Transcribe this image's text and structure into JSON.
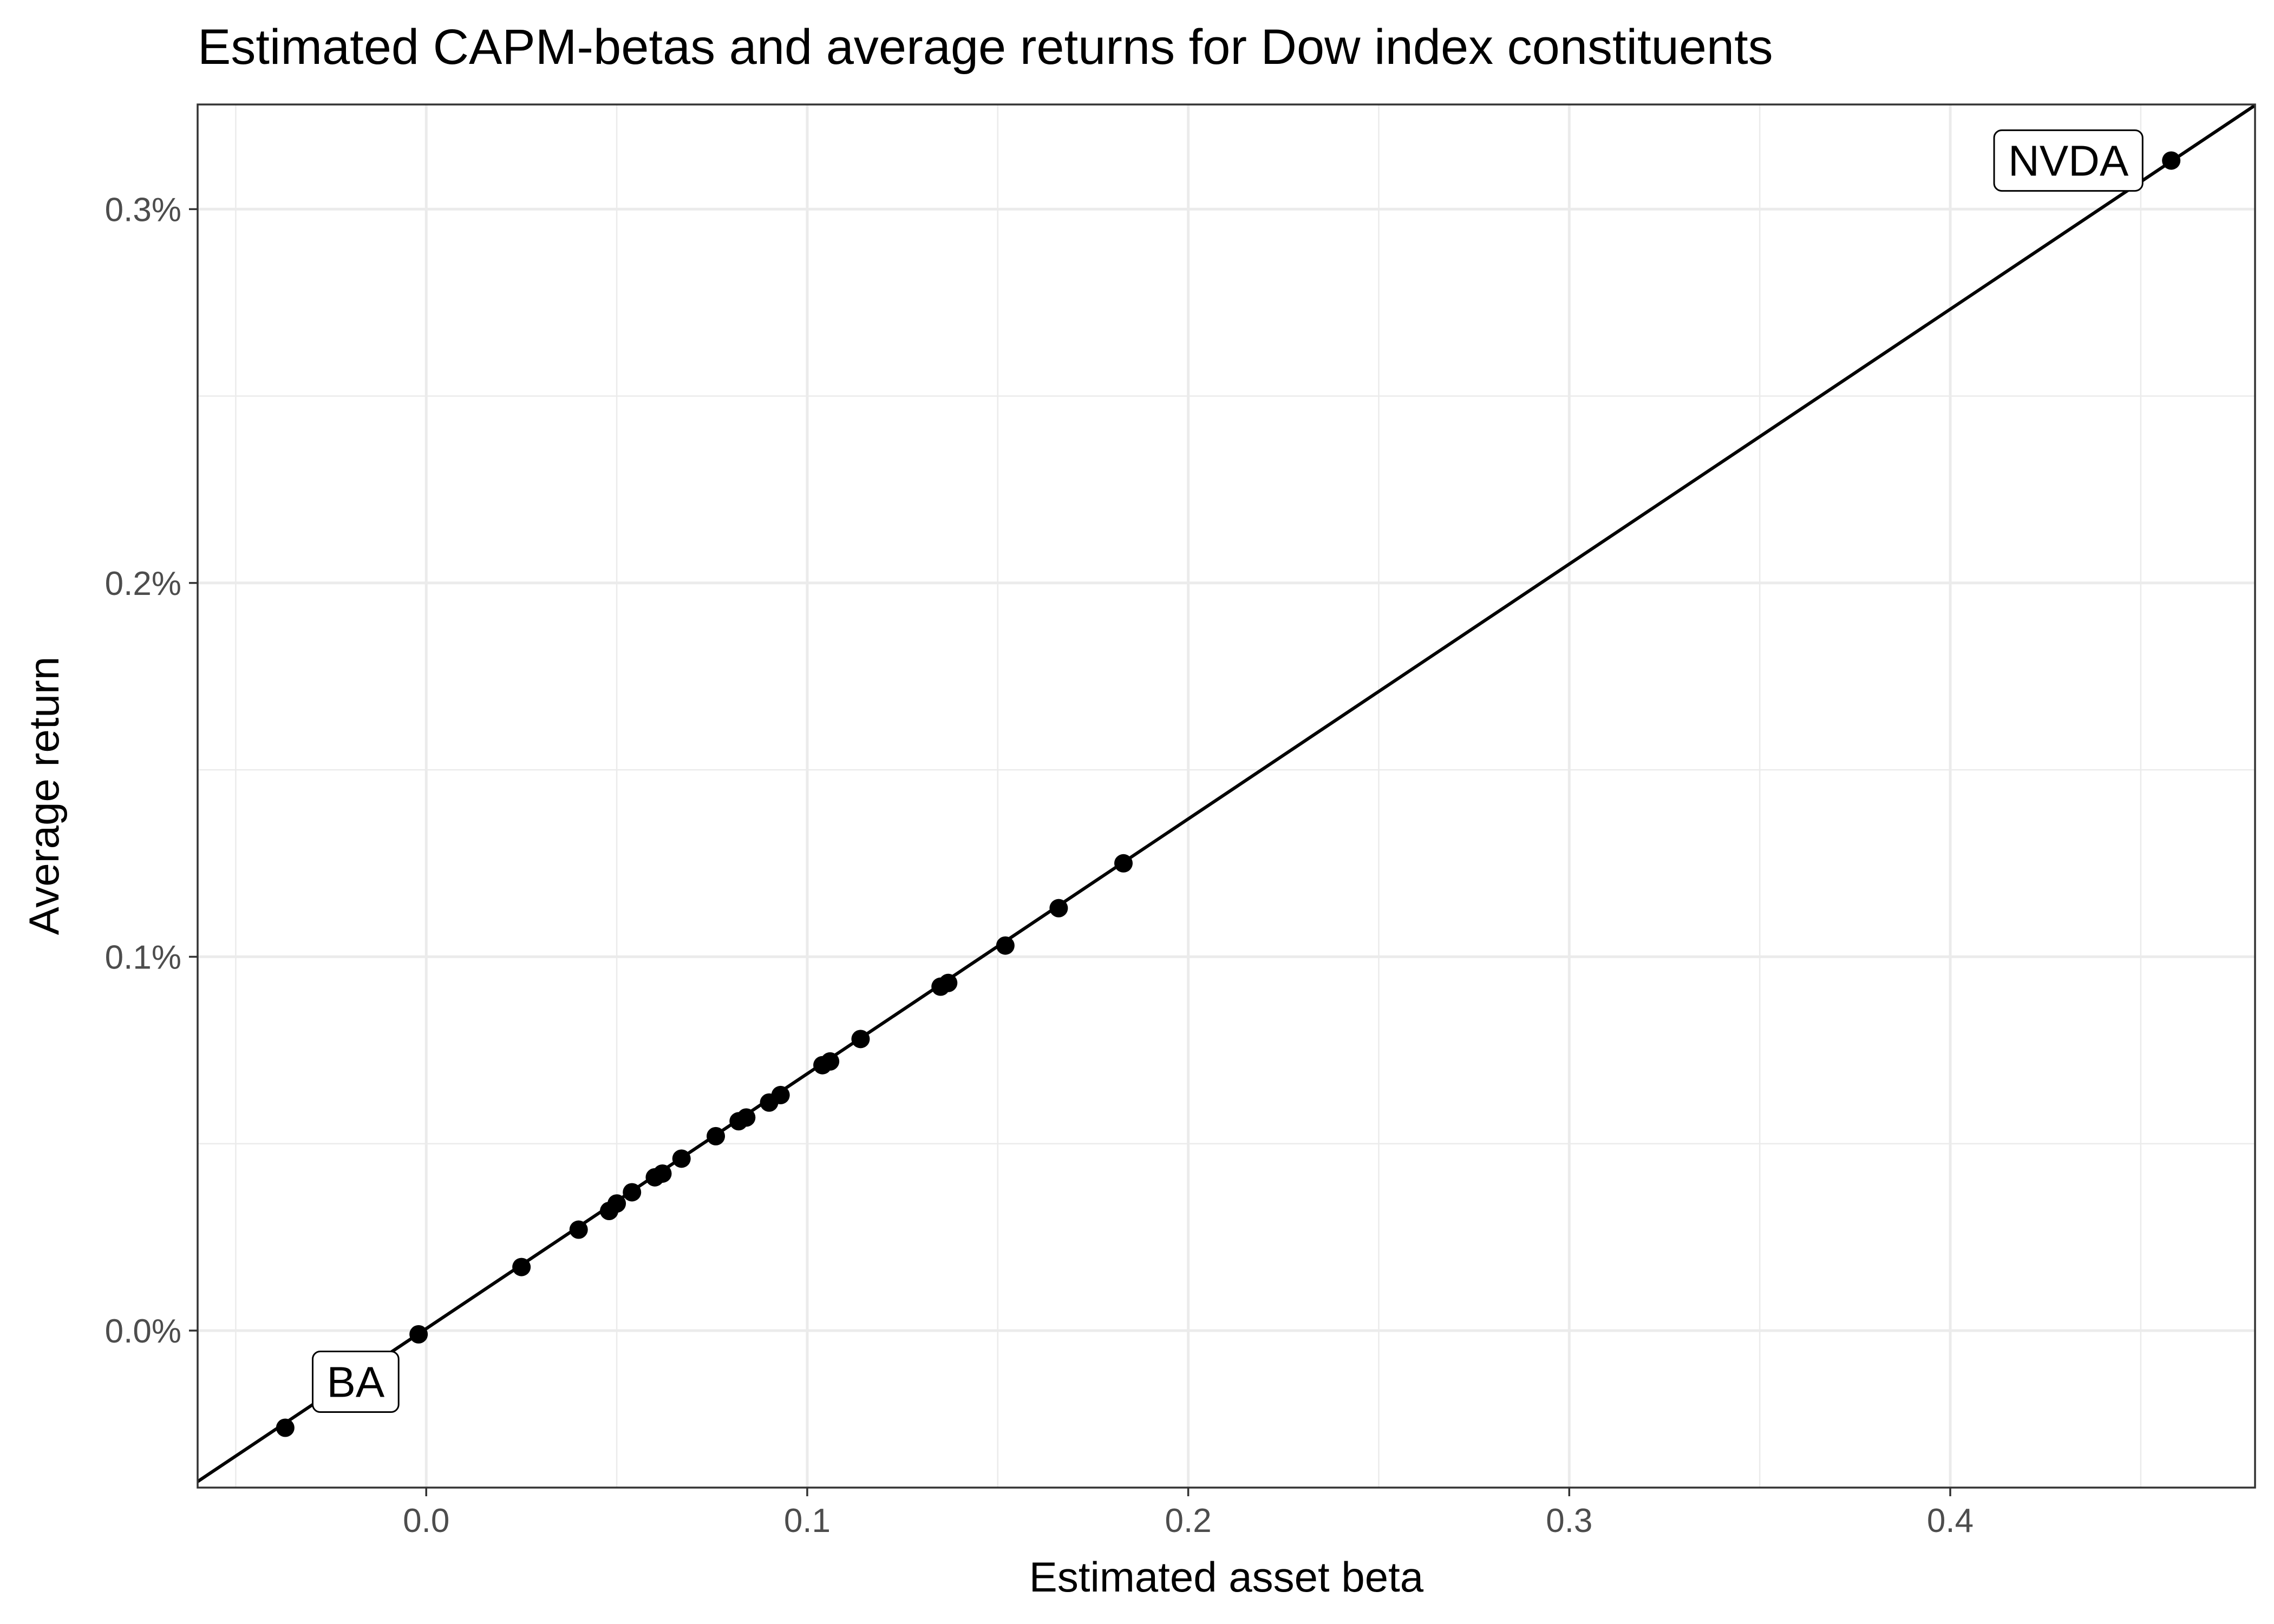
{
  "chart_data": {
    "type": "scatter",
    "title": "Estimated CAPM-betas and average returns for Dow index constituents",
    "xlabel": "Estimated asset beta",
    "ylabel": "Average return",
    "xlim": [
      -0.06,
      0.48
    ],
    "ylim": [
      -0.00042,
      0.00328
    ],
    "x_ticks": [
      0.0,
      0.1,
      0.2,
      0.3,
      0.4
    ],
    "x_tick_labels": [
      "0.0",
      "0.1",
      "0.2",
      "0.3",
      "0.4"
    ],
    "y_ticks": [
      0.0,
      0.001,
      0.002,
      0.003
    ],
    "y_tick_labels": [
      "0.0%",
      "0.1%",
      "0.2%",
      "0.3%"
    ],
    "grid": true,
    "background": "#ffffff",
    "grid_color": "#ebebeb",
    "point_color": "#000000",
    "line": {
      "type": "linear-fit",
      "intercept": 5.2e-06,
      "slope": 0.006818,
      "color": "#000000"
    },
    "points": [
      {
        "x": -0.037,
        "y": -0.00026,
        "label": "BA"
      },
      {
        "x": -0.002,
        "y": -1e-05
      },
      {
        "x": 0.025,
        "y": 0.00017
      },
      {
        "x": 0.04,
        "y": 0.00027
      },
      {
        "x": 0.048,
        "y": 0.00032
      },
      {
        "x": 0.05,
        "y": 0.00034
      },
      {
        "x": 0.054,
        "y": 0.00037
      },
      {
        "x": 0.06,
        "y": 0.00041
      },
      {
        "x": 0.062,
        "y": 0.00042
      },
      {
        "x": 0.067,
        "y": 0.00046
      },
      {
        "x": 0.076,
        "y": 0.00052
      },
      {
        "x": 0.082,
        "y": 0.00056
      },
      {
        "x": 0.084,
        "y": 0.00057
      },
      {
        "x": 0.09,
        "y": 0.00061
      },
      {
        "x": 0.093,
        "y": 0.00063
      },
      {
        "x": 0.104,
        "y": 0.00071
      },
      {
        "x": 0.106,
        "y": 0.00072
      },
      {
        "x": 0.114,
        "y": 0.00078
      },
      {
        "x": 0.135,
        "y": 0.00092
      },
      {
        "x": 0.137,
        "y": 0.00093
      },
      {
        "x": 0.152,
        "y": 0.00103
      },
      {
        "x": 0.166,
        "y": 0.00113
      },
      {
        "x": 0.183,
        "y": 0.00125
      },
      {
        "x": 0.458,
        "y": 0.00313,
        "label": "NVDA"
      }
    ]
  }
}
